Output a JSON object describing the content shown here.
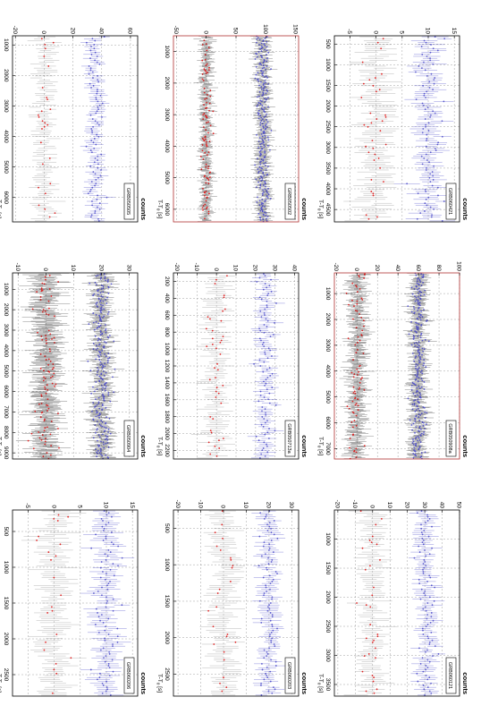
{
  "figure": {
    "rotation_deg": 90,
    "rows_top_to_bottom": 3,
    "columns_left_to_right": 3,
    "x_axis_label": "T-T",
    "x_axis_sub": "0",
    "x_axis_unit": "[s]",
    "y_axis_label": "counts"
  },
  "colors": {
    "upper_band_points": "#5555cc",
    "lower_band_points_error": "#999999",
    "lower_band_points": "#dd2222",
    "dense_error": "#111111",
    "frame": "#000000",
    "frame_highlight": "#b03030",
    "grid": "#888888"
  },
  "chart_data": [
    {
      "type": "scatter",
      "panel_row": 0,
      "panel_col": 0,
      "legend": "GRB060421",
      "legend_position": "top-right",
      "x_ticks": [
        "500",
        "1000",
        "1500",
        "2000",
        "2500",
        "3000",
        "3500",
        "4000",
        "4500"
      ],
      "xlim": [
        300,
        4800
      ],
      "y_ticks": [
        "-5",
        "0",
        "5",
        "10",
        "15"
      ],
      "ylim": [
        -8,
        16
      ],
      "grid": true,
      "frame_highlight": false,
      "series": [
        {
          "level": 10,
          "spread": 2.2
        },
        {
          "level": 0,
          "spread": 2.5
        }
      ],
      "dense": false
    },
    {
      "type": "scatter",
      "panel_row": 0,
      "panel_col": 1,
      "legend": "GRB050502",
      "legend_position": "top-right",
      "x_ticks": [
        "1000",
        "2000",
        "3000",
        "4000",
        "5000",
        "6000"
      ],
      "xlim": [
        500,
        6400
      ],
      "y_ticks": [
        "-50",
        "0",
        "50",
        "100",
        "150"
      ],
      "ylim": [
        -55,
        155
      ],
      "grid": true,
      "frame_highlight": true,
      "series": [
        {
          "level": 95,
          "spread": 10
        },
        {
          "level": 0,
          "spread": 8
        }
      ],
      "dense": true
    },
    {
      "type": "scatter",
      "panel_row": 0,
      "panel_col": 2,
      "legend": "GRB050505",
      "legend_position": "top-right",
      "x_ticks": [
        "1000",
        "2000",
        "3000",
        "4000",
        "5000",
        "6000"
      ],
      "xlim": [
        700,
        6800
      ],
      "y_ticks": [
        "-20",
        "0",
        "20",
        "40",
        "60"
      ],
      "ylim": [
        -22,
        65
      ],
      "grid": true,
      "frame_highlight": false,
      "series": [
        {
          "level": 35,
          "spread": 5
        },
        {
          "level": 0,
          "spread": 6
        }
      ],
      "dense": false
    },
    {
      "type": "scatter",
      "panel_row": 1,
      "panel_col": 0,
      "legend": "GRB050908a",
      "legend_position": "top-right",
      "x_ticks": [
        "1000",
        "2000",
        "3000",
        "4000",
        "5000",
        "6000",
        "7000"
      ],
      "xlim": [
        200,
        7400
      ],
      "y_ticks": [
        "-20",
        "0",
        "20",
        "40",
        "60",
        "80",
        "100"
      ],
      "ylim": [
        -22,
        100
      ],
      "grid": true,
      "frame_highlight": true,
      "series": [
        {
          "level": 60,
          "spread": 7
        },
        {
          "level": 0,
          "spread": 7
        }
      ],
      "dense": true
    },
    {
      "type": "scatter",
      "panel_row": 1,
      "panel_col": 1,
      "legend": "GRB050713a",
      "legend_position": "top-right",
      "x_ticks": [
        "200",
        "400",
        "600",
        "800",
        "1000",
        "1200",
        "1400",
        "1600",
        "1800",
        "2000",
        "2200"
      ],
      "xlim": [
        100,
        2300
      ],
      "y_ticks": [
        "-20",
        "-10",
        "0",
        "10",
        "20",
        "30",
        "40"
      ],
      "ylim": [
        -22,
        42
      ],
      "grid": true,
      "frame_highlight": false,
      "series": [
        {
          "level": 25,
          "spread": 4
        },
        {
          "level": 0,
          "spread": 5
        }
      ],
      "dense": false
    },
    {
      "type": "scatter",
      "panel_row": 1,
      "panel_col": 2,
      "legend": "GRB050904",
      "legend_position": "top-right",
      "x_ticks": [
        "1000",
        "2000",
        "3000",
        "4000",
        "5000",
        "6000",
        "7000",
        "8000",
        "9000"
      ],
      "xlim": [
        200,
        9300
      ],
      "y_ticks": [
        "-10",
        "0",
        "10",
        "20",
        "30"
      ],
      "ylim": [
        -12,
        33
      ],
      "grid": true,
      "frame_highlight": false,
      "series": [
        {
          "level": 20,
          "spread": 3
        },
        {
          "level": 0,
          "spread": 4
        }
      ],
      "dense": true
    },
    {
      "type": "scatter",
      "panel_row": 2,
      "panel_col": 0,
      "legend": "GRB060121",
      "legend_position": "top-right",
      "x_ticks": [
        "1000",
        "1500",
        "2000",
        "2500",
        "3000",
        "3500"
      ],
      "xlim": [
        500,
        3700
      ],
      "y_ticks": [
        "-20",
        "-10",
        "0",
        "10",
        "20",
        "30",
        "40",
        "50"
      ],
      "ylim": [
        -22,
        50
      ],
      "grid": true,
      "frame_highlight": false,
      "series": [
        {
          "level": 30,
          "spread": 5
        },
        {
          "level": 0,
          "spread": 6
        }
      ],
      "dense": false
    },
    {
      "type": "scatter",
      "panel_row": 2,
      "panel_col": 1,
      "legend": "GRB060203",
      "legend_position": "top-right",
      "x_ticks": [
        "500",
        "1000",
        "1500",
        "2000",
        "2500"
      ],
      "xlim": [
        250,
        2800
      ],
      "y_ticks": [
        "-20",
        "-10",
        "0",
        "10",
        "20",
        "30"
      ],
      "ylim": [
        -22,
        33
      ],
      "grid": true,
      "frame_highlight": false,
      "series": [
        {
          "level": 20,
          "spread": 4
        },
        {
          "level": 0,
          "spread": 5
        }
      ],
      "dense": false
    },
    {
      "type": "scatter",
      "panel_row": 2,
      "panel_col": 2,
      "legend": "GRB060206",
      "legend_position": "top-right",
      "x_ticks": [
        "500",
        "1000",
        "1500",
        "2000",
        "2500"
      ],
      "xlim": [
        200,
        2800
      ],
      "y_ticks": [
        "-5",
        "0",
        "5",
        "10",
        "15"
      ],
      "ylim": [
        -8,
        16
      ],
      "grid": true,
      "frame_highlight": false,
      "series": [
        {
          "level": 10,
          "spread": 2.2
        },
        {
          "level": 0,
          "spread": 2.5
        }
      ],
      "dense": false
    }
  ]
}
